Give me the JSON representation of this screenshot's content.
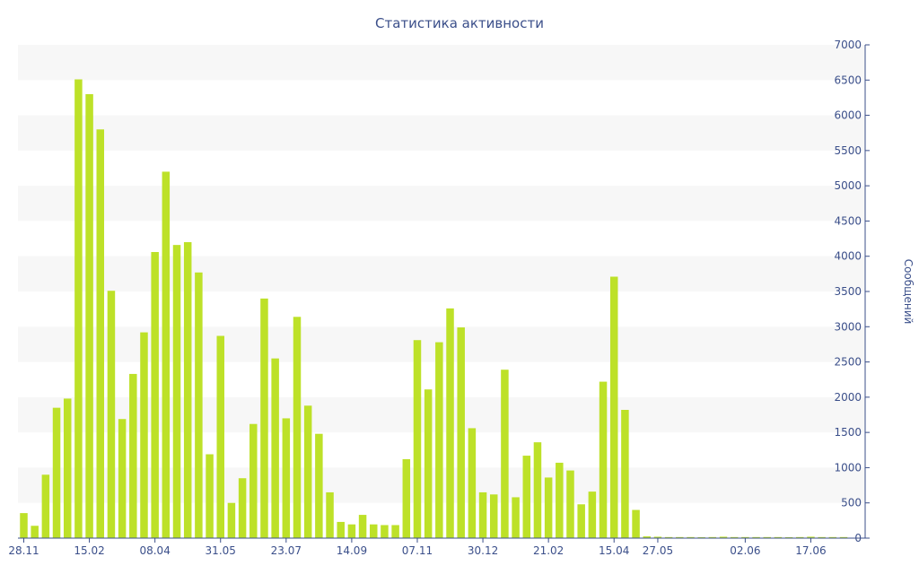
{
  "chart_data": {
    "type": "bar",
    "title": "Статистика активности",
    "ylabel": "Сообщений",
    "y_axis_position": "right",
    "ylim": [
      0,
      7000
    ],
    "y_ticks": [
      0,
      500,
      1000,
      1500,
      2000,
      2500,
      3000,
      3500,
      4000,
      4500,
      5000,
      5500,
      6000,
      6500,
      7000
    ],
    "x_ticks": [
      {
        "label": "28.11",
        "index": 0
      },
      {
        "label": "15.02",
        "index": 6
      },
      {
        "label": "08.04",
        "index": 12
      },
      {
        "label": "31.05",
        "index": 18
      },
      {
        "label": "23.07",
        "index": 24
      },
      {
        "label": "14.09",
        "index": 30
      },
      {
        "label": "07.11",
        "index": 36
      },
      {
        "label": "30.12",
        "index": 42
      },
      {
        "label": "21.02",
        "index": 48
      },
      {
        "label": "15.04",
        "index": 54
      },
      {
        "label": "27.05",
        "index": 58
      },
      {
        "label": "02.06",
        "index": 66
      },
      {
        "label": "17.06",
        "index": 72
      }
    ],
    "grid": "alternating horizontal bands",
    "bar_color": "#bde128",
    "values": [
      355,
      175,
      900,
      1850,
      1980,
      6510,
      6300,
      5800,
      3510,
      1690,
      2330,
      2920,
      4060,
      5200,
      4160,
      4200,
      3770,
      1190,
      2870,
      500,
      850,
      1620,
      3400,
      2550,
      1700,
      3140,
      1880,
      1480,
      650,
      230,
      195,
      330,
      195,
      185,
      185,
      1120,
      2810,
      2110,
      2780,
      3260,
      2990,
      1560,
      650,
      620,
      2390,
      580,
      1170,
      1360,
      860,
      1070,
      960,
      480,
      660,
      2220,
      3710,
      1820,
      400,
      25,
      20,
      15,
      15,
      15,
      12,
      15,
      20,
      15,
      15,
      15,
      15,
      15,
      12,
      15,
      20,
      15,
      15,
      15
    ]
  }
}
